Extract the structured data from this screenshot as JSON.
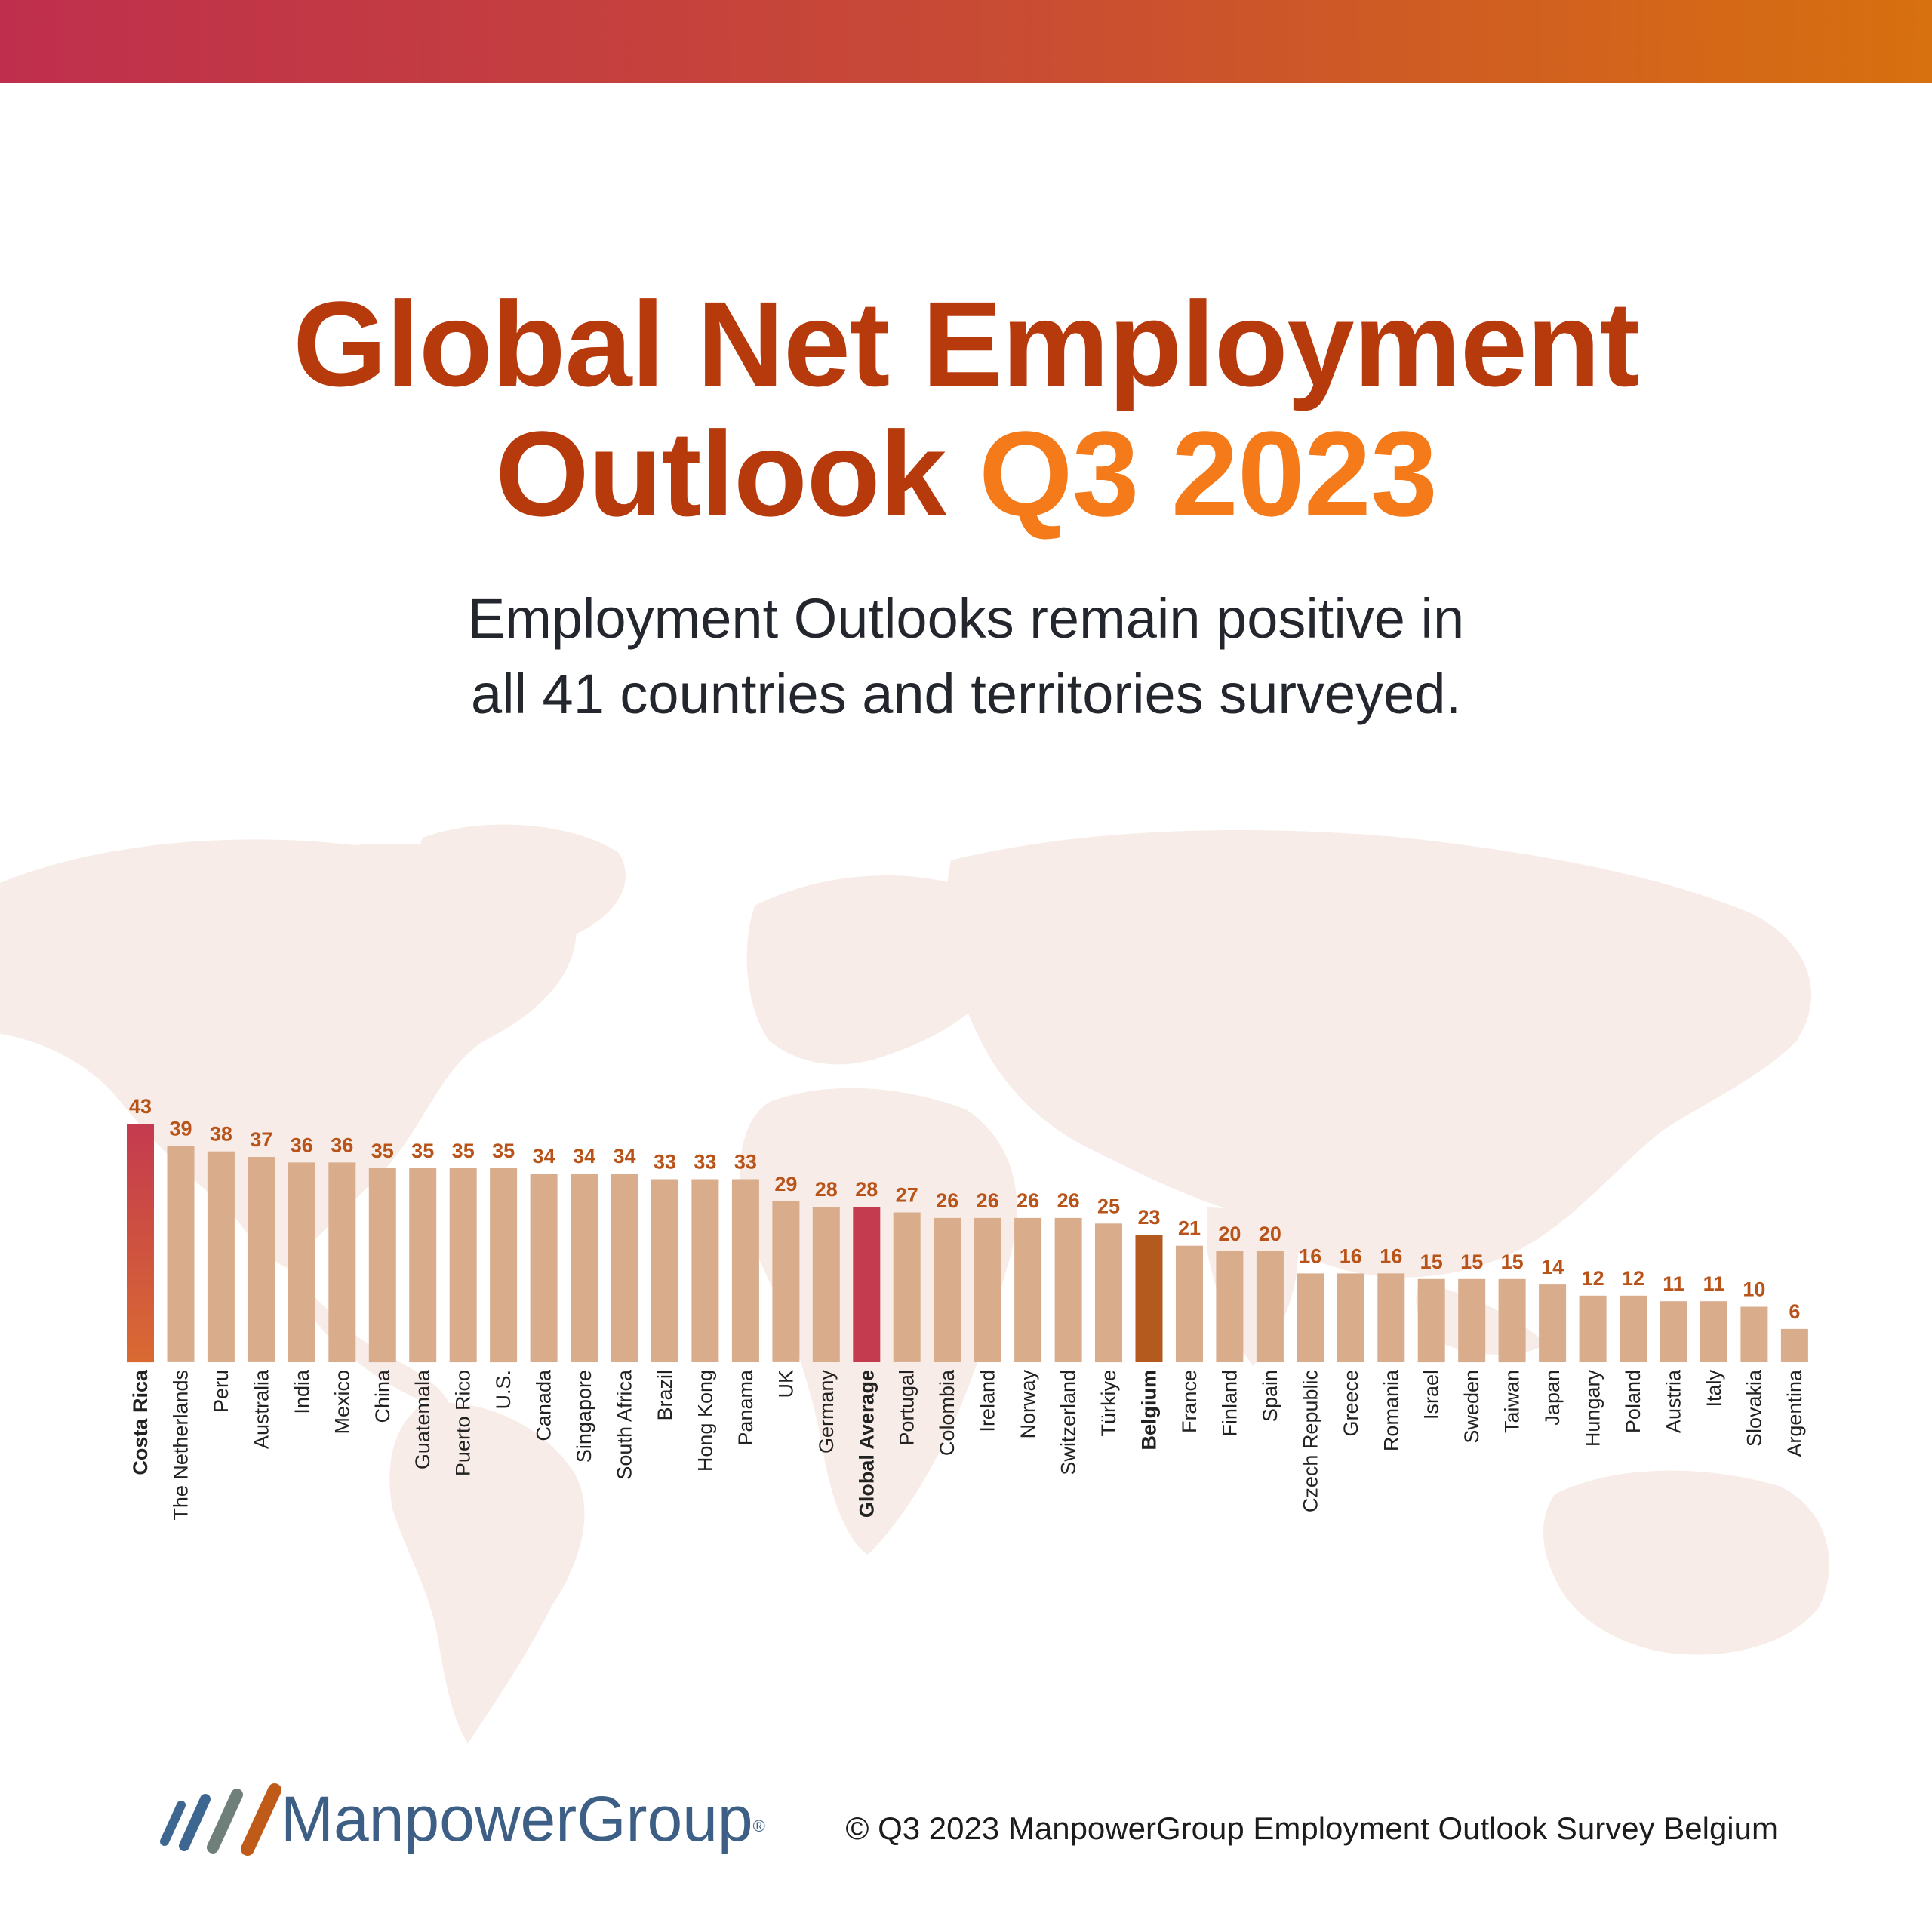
{
  "header": {
    "title_line1": "Global Net Employment",
    "title_line2_main": "Outlook",
    "title_line2_highlight": "Q3 2023",
    "subtitle_line1": "Employment Outlooks remain positive in",
    "subtitle_line2": "all 41 countries and territories surveyed."
  },
  "colors": {
    "bar_default": "#d9ac8c",
    "bar_top": "#c43a4f",
    "bar_top_bottom": "#d96a32",
    "bar_global_average": "#c43a4f",
    "bar_belgium": "#b55a1f",
    "value_label": "#b8531a",
    "map_fill": "#f7ece7",
    "title": "#b73a0c",
    "title_highlight": "#f47a1a"
  },
  "chart_data": {
    "type": "bar",
    "title": "",
    "xlabel": "",
    "ylabel": "",
    "grid": false,
    "legend": "none",
    "highlighted": [
      "Costa Rica",
      "Global Average",
      "Belgium"
    ],
    "categories": [
      "Costa Rica",
      "The Netherlands",
      "Peru",
      "Australia",
      "India",
      "Mexico",
      "China",
      "Guatemala",
      "Puerto Rico",
      "U.S.",
      "Canada",
      "Singapore",
      "South Africa",
      "Brazil",
      "Hong Kong",
      "Panama",
      "UK",
      "Germany",
      "Global Average",
      "Portugal",
      "Colombia",
      "Ireland",
      "Norway",
      "Switzerland",
      "Türkiye",
      "Belgium",
      "France",
      "Finland",
      "Spain",
      "Czech Republic",
      "Greece",
      "Romania",
      "Israel",
      "Sweden",
      "Taiwan",
      "Japan",
      "Hungary",
      "Poland",
      "Austria",
      "Italy",
      "Slovakia",
      "Argentina"
    ],
    "values": [
      43,
      39,
      38,
      37,
      36,
      36,
      35,
      35,
      35,
      35,
      34,
      34,
      34,
      33,
      33,
      33,
      29,
      28,
      28,
      27,
      26,
      26,
      26,
      26,
      25,
      23,
      21,
      20,
      20,
      16,
      16,
      16,
      15,
      15,
      15,
      14,
      12,
      12,
      11,
      11,
      10,
      6
    ]
  },
  "footer": {
    "brand": "ManpowerGroup",
    "brand_mark": "®",
    "copyright": "© Q3 2023 ManpowerGroup Employment Outlook Survey Belgium"
  }
}
